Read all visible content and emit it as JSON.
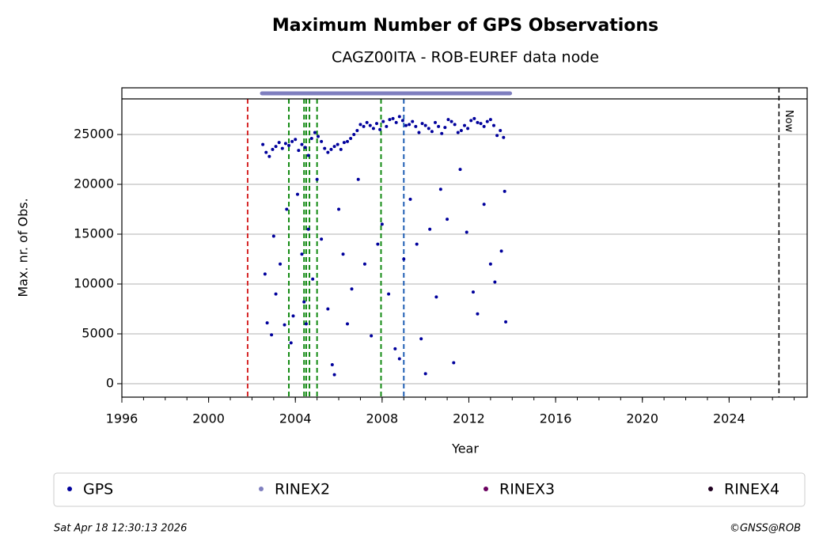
{
  "chart_data": {
    "type": "scatter",
    "title": "Maximum Number of GPS Observations",
    "subtitle": "CAGZ00ITA - ROB-EUREF data node",
    "x_label": "Year",
    "y_label": "Max. nr. of Obs.",
    "xlim": [
      1996,
      2027.6
    ],
    "ylim": [
      -1349,
      28571
    ],
    "xticks": [
      1996,
      2000,
      2004,
      2008,
      2012,
      2016,
      2020,
      2024
    ],
    "xminor": [
      1996,
      1997,
      1998,
      1999,
      2000,
      2001,
      2002,
      2003,
      2004,
      2005,
      2006,
      2007,
      2008,
      2009,
      2010,
      2011,
      2012,
      2013,
      2014,
      2015,
      2016,
      2017,
      2018,
      2019,
      2020,
      2021,
      2022,
      2023,
      2024,
      2025,
      2026,
      2027
    ],
    "yticks": [
      0,
      5000,
      10000,
      15000,
      20000,
      25000
    ],
    "grid": true,
    "x": [
      2002.5,
      2002.65,
      2002.8,
      2002.95,
      2003.1,
      2003.25,
      2003.4,
      2003.55,
      2003.7,
      2003.85,
      2004.0,
      2004.15,
      2004.3,
      2004.45,
      2004.6,
      2004.75,
      2004.9,
      2005.05,
      2005.2,
      2005.35,
      2005.5,
      2005.65,
      2005.8,
      2005.95,
      2006.1,
      2006.25,
      2006.4,
      2006.55,
      2006.7,
      2006.85,
      2007.0,
      2007.15,
      2007.3,
      2007.45,
      2007.6,
      2007.75,
      2007.9,
      2008.05,
      2008.2,
      2008.35,
      2008.5,
      2008.65,
      2008.8,
      2008.95,
      2009.1,
      2009.25,
      2009.4,
      2009.55,
      2009.7,
      2009.85,
      2010.0,
      2010.15,
      2010.3,
      2010.45,
      2010.6,
      2010.75,
      2010.9,
      2011.05,
      2011.2,
      2011.35,
      2011.5,
      2011.65,
      2011.8,
      2011.95,
      2012.1,
      2012.25,
      2012.4,
      2012.55,
      2012.7,
      2012.85,
      2013.0,
      2013.15,
      2013.3,
      2013.45,
      2013.6,
      2002.6,
      2002.7,
      2002.9,
      2003.0,
      2003.1,
      2003.3,
      2003.5,
      2003.6,
      2003.8,
      2003.9,
      2004.1,
      2004.3,
      2004.4,
      2004.5,
      2004.6,
      2004.8,
      2005.0,
      2005.2,
      2005.5,
      2005.7,
      2005.8,
      2006.0,
      2006.2,
      2006.4,
      2006.6,
      2006.9,
      2007.2,
      2007.5,
      2007.8,
      2008.0,
      2008.3,
      2008.6,
      2008.8,
      2009.0,
      2009.3,
      2009.6,
      2009.8,
      2010.0,
      2010.2,
      2010.5,
      2010.7,
      2011.0,
      2011.3,
      2011.6,
      2011.9,
      2012.2,
      2012.4,
      2012.7,
      2013.0,
      2013.2,
      2013.5,
      2013.7,
      2013.65
    ],
    "series": [
      {
        "name": "GPS",
        "color": "#00009c",
        "values": [
          24000,
          23200,
          22800,
          23500,
          23800,
          24200,
          23600,
          24100,
          23900,
          24300,
          24500,
          23400,
          24000,
          23700,
          22900,
          24600,
          25200,
          24800,
          24300,
          23600,
          23200,
          23500,
          23800,
          24000,
          23500,
          24200,
          24300,
          24600,
          25000,
          25400,
          26000,
          25800,
          26200,
          25900,
          25600,
          26100,
          25500,
          26300,
          25800,
          26500,
          26600,
          26200,
          26800,
          26400,
          25900,
          26000,
          26300,
          25800,
          25200,
          26100,
          25900,
          25600,
          25300,
          26200,
          25800,
          25100,
          25700,
          26500,
          26300,
          26000,
          25200,
          25400,
          25900,
          25600,
          26400,
          26600,
          26200,
          26100,
          25800,
          26300,
          26500,
          25900,
          24900,
          25400,
          24700,
          11000,
          6100,
          4900,
          14800,
          9000,
          12000,
          5900,
          17500,
          4100,
          6800,
          19000,
          13000,
          8200,
          6000,
          15500,
          10500,
          20500,
          14500,
          7500,
          1900,
          900,
          17500,
          13000,
          6000,
          9500,
          20500,
          12000,
          4800,
          14000,
          16000,
          9000,
          3500,
          2500,
          12500,
          18500,
          14000,
          4500,
          1000,
          15500,
          8700,
          19500,
          16500,
          2100,
          21500,
          15200,
          9200,
          7000,
          18000,
          12000,
          10200,
          13300,
          6200,
          19300
        ]
      },
      {
        "name": "RINEX2",
        "color": "#7f7fbf",
        "span": [
          2002.46,
          2013.9
        ]
      },
      {
        "name": "RINEX3",
        "color": "#6b005f"
      },
      {
        "name": "RINEX4",
        "color": "#200020"
      }
    ],
    "events": [
      {
        "x": 2001.8,
        "color": "#d62728"
      },
      {
        "x": 2003.7,
        "color": "#138a13"
      },
      {
        "x": 2004.4,
        "color": "#138a13"
      },
      {
        "x": 2004.5,
        "color": "#138a13"
      },
      {
        "x": 2004.65,
        "color": "#138a13"
      },
      {
        "x": 2005.0,
        "color": "#138a13"
      },
      {
        "x": 2007.95,
        "color": "#138a13"
      },
      {
        "x": 2009.0,
        "color": "#1f5fb4"
      }
    ],
    "now": {
      "x": 2026.3,
      "label": "Now"
    },
    "timestamp": "Sat Apr 18 12:30:13 2026",
    "credit": "©GNSS@ROB"
  }
}
